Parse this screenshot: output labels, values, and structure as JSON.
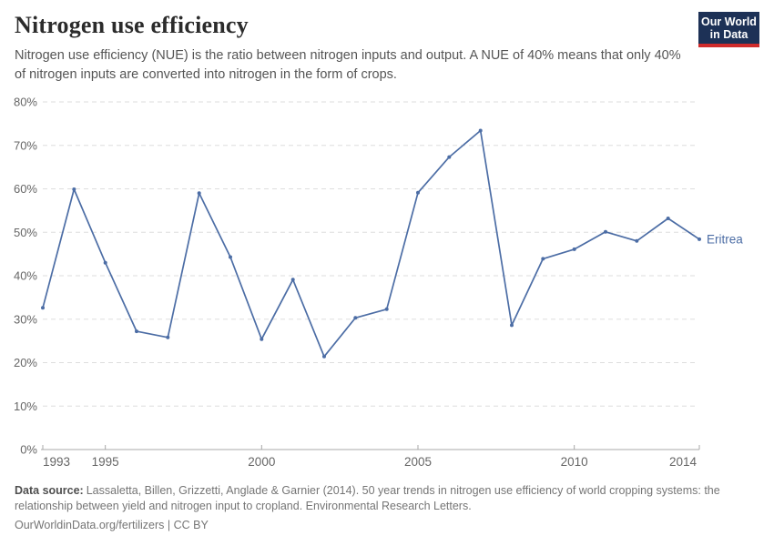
{
  "header": {
    "title": "Nitrogen use efficiency",
    "subtitle": "Nitrogen use efficiency (NUE) is the ratio between nitrogen inputs and output. A NUE of 40% means that only 40% of nitrogen inputs are converted into nitrogen in the form of crops.",
    "logo": {
      "line1": "Our World",
      "line2": "in Data"
    }
  },
  "chart_data": {
    "type": "line",
    "title": "Nitrogen use efficiency",
    "xlabel": "",
    "ylabel": "",
    "x": [
      1993,
      1994,
      1995,
      1996,
      1997,
      1998,
      1999,
      2000,
      2001,
      2002,
      2003,
      2004,
      2005,
      2006,
      2007,
      2008,
      2009,
      2010,
      2011,
      2012,
      2013,
      2014
    ],
    "series": [
      {
        "name": "Eritrea",
        "color": "#4c6da5",
        "values": [
          32.6,
          59.9,
          43.0,
          27.2,
          25.8,
          59.0,
          44.3,
          25.4,
          39.1,
          21.4,
          30.3,
          32.3,
          59.1,
          67.3,
          73.4,
          28.6,
          43.9,
          46.1,
          50.1,
          48.0,
          53.2,
          48.4
        ]
      }
    ],
    "ylim": [
      0,
      80
    ],
    "yticks": [
      0,
      10,
      20,
      30,
      40,
      50,
      60,
      70,
      80
    ],
    "ytick_suffix": "%",
    "xticks": [
      1993,
      1995,
      2000,
      2005,
      2010,
      2014
    ],
    "grid": "horizontal-dashed",
    "legend_position": "end-of-line-label"
  },
  "footer": {
    "source_label": "Data source:",
    "source_text": "Lassaletta, Billen, Grizzetti, Anglade & Garnier (2014). 50 year trends in nitrogen use efficiency of world cropping systems: the relationship between yield and nitrogen input to cropland. Environmental Research Letters.",
    "license_line": "OurWorldinData.org/fertilizers | CC BY"
  },
  "colors": {
    "line": "#4c6da5",
    "grid": "#dedede",
    "axis": "#a8a8a8",
    "tick_label": "#666666",
    "logo_bg": "#1d3156",
    "logo_accent": "#cf2b2b"
  }
}
